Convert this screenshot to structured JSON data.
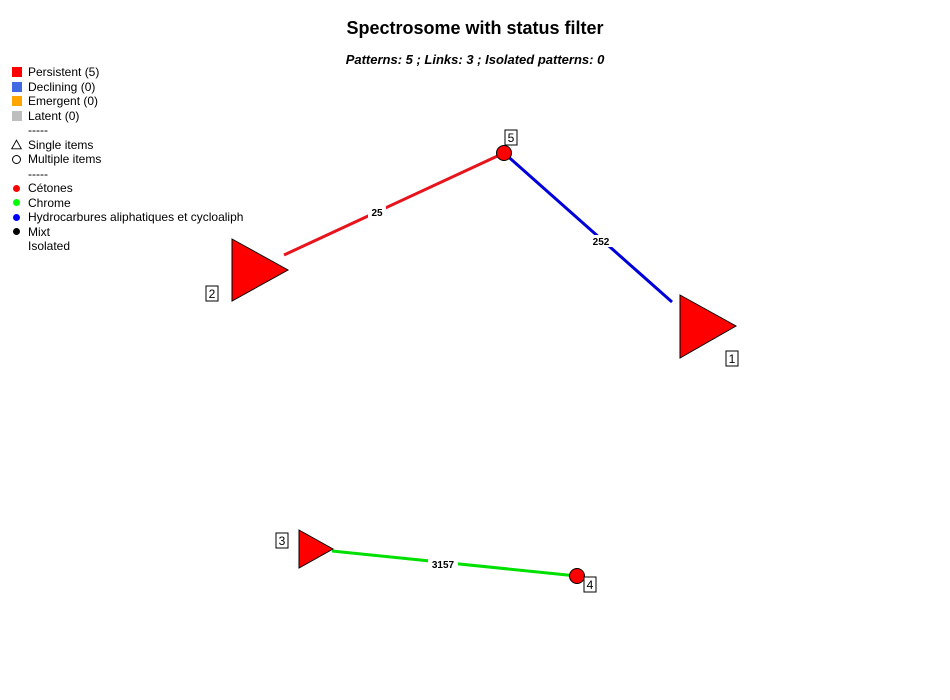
{
  "title": "Spectrosome with status filter",
  "subtitle": "Patterns: 5 ; Links: 3 ; Isolated patterns: 0",
  "legend": {
    "status": [
      {
        "label": "Persistent (5)",
        "color": "#ff0000"
      },
      {
        "label": "Declining (0)",
        "color": "#4169e1"
      },
      {
        "label": "Emergent (0)",
        "color": "#ffa500"
      },
      {
        "label": "Latent (0)",
        "color": "#bebebe"
      }
    ],
    "separator1": "-----",
    "shapes": [
      {
        "label": "Single items",
        "icon": "triangle-outline-icon"
      },
      {
        "label": "Multiple items",
        "icon": "circle-outline-icon"
      }
    ],
    "separator2": "-----",
    "categories": [
      {
        "label": "Cétones",
        "color": "#ff0000"
      },
      {
        "label": "Chrome",
        "color": "#00ff00"
      },
      {
        "label": "Hydrocarbures aliphatiques et cycloaliph",
        "color": "#0000ff"
      },
      {
        "label": "Mixt",
        "color": "#000000"
      }
    ],
    "isolated_label": "Isolated"
  },
  "chart_data": {
    "type": "network",
    "title": "Spectrosome with status filter",
    "nodes": [
      {
        "id": "1",
        "shape": "triangle",
        "status": "Persistent"
      },
      {
        "id": "2",
        "shape": "triangle",
        "status": "Persistent"
      },
      {
        "id": "3",
        "shape": "triangle",
        "status": "Persistent"
      },
      {
        "id": "4",
        "shape": "circle",
        "status": "Persistent"
      },
      {
        "id": "5",
        "shape": "circle",
        "status": "Persistent"
      }
    ],
    "edges": [
      {
        "source": "2",
        "target": "5",
        "weight": "25",
        "category": "Cétones",
        "color": "#e8141c"
      },
      {
        "source": "5",
        "target": "1",
        "weight": "252",
        "category": "Hydrocarbures aliphatiques et cycloaliph",
        "color": "#0000d8"
      },
      {
        "source": "3",
        "target": "4",
        "weight": "3157",
        "category": "Chrome",
        "color": "#00e000"
      }
    ],
    "node_fill": "#ff0000"
  }
}
